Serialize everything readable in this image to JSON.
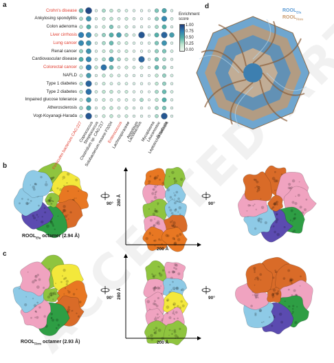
{
  "panel_labels": {
    "a": "a",
    "b": "b",
    "c": "c",
    "d": "d"
  },
  "heatmap": {
    "diseases": [
      {
        "name": "Crohn's disease",
        "highlight": true
      },
      {
        "name": "Ankylosing spondylitis",
        "highlight": false
      },
      {
        "name": "Colon adenoma",
        "highlight": false
      },
      {
        "name": "Liver cirrhosis",
        "highlight": true
      },
      {
        "name": "Lung cancer",
        "highlight": true
      },
      {
        "name": "Renal cancer",
        "highlight": false
      },
      {
        "name": "Cardiovascular disease",
        "highlight": false
      },
      {
        "name": "Colorectal cancer",
        "highlight": true
      },
      {
        "name": "NAFLD",
        "highlight": false
      },
      {
        "name": "Type 1 diabetes",
        "highlight": false
      },
      {
        "name": "Type 2 diabetes",
        "highlight": false
      },
      {
        "name": "Impaired glucose tolerance",
        "highlight": false
      },
      {
        "name": "Atherosclerosis",
        "highlight": false
      },
      {
        "name": "Vogt-Koyanagi-Harada",
        "highlight": false
      }
    ],
    "taxa": [
      {
        "name": "Firmicutes bacterium CAG:227",
        "highlight": true
      },
      {
        "name": "Coprococcus",
        "highlight": false
      },
      {
        "name": "Streptococcus",
        "highlight": false
      },
      {
        "name": "Clostridium sp. CAG:217",
        "highlight": false
      },
      {
        "name": "Solobacterium moorei F0204",
        "highlight": false
      },
      {
        "name": "Enterococcus",
        "highlight": true
      },
      {
        "name": "Lachnospiraceae",
        "highlight": false
      },
      {
        "name": "Atopobium",
        "highlight": false
      },
      {
        "name": "Lactobacillus",
        "highlight": false
      },
      {
        "name": "Mycoplasma",
        "highlight": false
      },
      {
        "name": "Leuconostoc",
        "highlight": false
      },
      {
        "name": "Roseburia",
        "highlight": false
      },
      {
        "name": "Leptotrichia buccalis",
        "highlight": false
      }
    ],
    "legend_title_line1": "Enrichment",
    "legend_title_line2": "score",
    "legend_ticks": [
      "1.00",
      "0.75",
      "0.50",
      "0.25",
      "0.00"
    ]
  },
  "chart_data": {
    "type": "heatmap",
    "legend_title": "Enrichment score",
    "range": [
      0,
      1
    ],
    "rows": [
      "Crohn's disease",
      "Ankylosing spondylitis",
      "Colon adenoma",
      "Liver cirrhosis",
      "Lung cancer",
      "Renal cancer",
      "Cardiovascular disease",
      "Colorectal cancer",
      "NAFLD",
      "Type 1 diabetes",
      "Type 2 diabetes",
      "Impaired glucose tolerance",
      "Atherosclerosis",
      "Vogt-Koyanagi-Harada"
    ],
    "columns": [
      "Firmicutes bacterium CAG:227",
      "Coprococcus",
      "Streptococcus",
      "Clostridium sp. CAG:217",
      "Solobacterium moorei F0204",
      "Enterococcus",
      "Lachnospiraceae",
      "Atopobium",
      "Lactobacillus",
      "Mycoplasma",
      "Leuconostoc",
      "Roseburia",
      "Leptotrichia buccalis"
    ],
    "values": [
      [
        0.45,
        0.95,
        0.1,
        0.3,
        0.25,
        0.2,
        0.15,
        0.1,
        0.1,
        0.05,
        0.4,
        0.55,
        0.1
      ],
      [
        0.3,
        0.65,
        0.1,
        0.2,
        0.25,
        0.15,
        0.2,
        0.1,
        0.05,
        0.05,
        0.35,
        0.7,
        0.15
      ],
      [
        0.25,
        0.5,
        0.1,
        0.2,
        0.4,
        0.1,
        0.2,
        0.1,
        0.1,
        0.05,
        0.3,
        0.5,
        0.1
      ],
      [
        0.75,
        0.7,
        0.2,
        0.35,
        0.5,
        0.6,
        0.3,
        0.15,
        0.9,
        0.1,
        0.5,
        0.85,
        0.6
      ],
      [
        0.7,
        0.65,
        0.1,
        0.3,
        0.45,
        0.2,
        0.2,
        0.1,
        0.1,
        0.1,
        0.4,
        0.65,
        0.1
      ],
      [
        0.35,
        0.65,
        0.1,
        0.2,
        0.3,
        0.15,
        0.2,
        0.1,
        0.1,
        0.1,
        0.35,
        0.4,
        0.15
      ],
      [
        0.5,
        0.7,
        0.15,
        0.3,
        0.6,
        0.3,
        0.2,
        0.1,
        0.85,
        0.1,
        0.4,
        0.3,
        0.1
      ],
      [
        0.25,
        0.75,
        0.25,
        0.8,
        0.45,
        0.15,
        0.2,
        0.15,
        0.2,
        0.1,
        0.45,
        0.35,
        0.1
      ],
      [
        0.2,
        0.6,
        0.1,
        0.25,
        0.2,
        0.15,
        0.15,
        0.1,
        0.1,
        0.05,
        0.25,
        0.35,
        0.15
      ],
      [
        0.25,
        0.85,
        0.1,
        0.2,
        0.15,
        0.15,
        0.15,
        0.1,
        0.1,
        0.05,
        0.25,
        0.35,
        0.1
      ],
      [
        0.25,
        0.8,
        0.15,
        0.25,
        0.25,
        0.15,
        0.2,
        0.1,
        0.1,
        0.05,
        0.3,
        0.45,
        0.15
      ],
      [
        0.2,
        0.6,
        0.1,
        0.2,
        0.15,
        0.15,
        0.15,
        0.1,
        0.3,
        0.05,
        0.25,
        0.5,
        0.1
      ],
      [
        0.3,
        0.55,
        0.1,
        0.2,
        0.25,
        0.15,
        0.2,
        0.1,
        0.1,
        0.05,
        0.3,
        0.4,
        0.1
      ],
      [
        0.2,
        0.9,
        0.1,
        0.2,
        0.25,
        0.15,
        0.2,
        0.1,
        0.1,
        0.05,
        0.3,
        0.9,
        0.1
      ]
    ]
  },
  "structures": {
    "b_caption_prefix": "ROOL",
    "b_caption_sub": "Efa",
    "b_caption_suffix": " octamer (2.94 Å)",
    "c_caption_prefix": "ROOL",
    "c_caption_sub": "Firm",
    "c_caption_suffix": " octamer (2.93 Å)",
    "dim_vertical": "280 Å",
    "dim_horizontal": "200 Å",
    "rotation": "90°",
    "d_label1_prefix": "ROOL",
    "d_label1_sub": "Efa",
    "d_label2_prefix": "ROOL",
    "d_label2_sub": "Firm",
    "d_colors": {
      "efa": "#5b9bd5",
      "firm": "#c8986a"
    },
    "subunit_colors": [
      "#8fc43f",
      "#e87722",
      "#f0a3c0",
      "#5b4bb0",
      "#2e9e44",
      "#f3e83b",
      "#8ecae6",
      "#d96b28"
    ]
  },
  "watermark": "ACCEPTED ARTICLE PREVIEW"
}
